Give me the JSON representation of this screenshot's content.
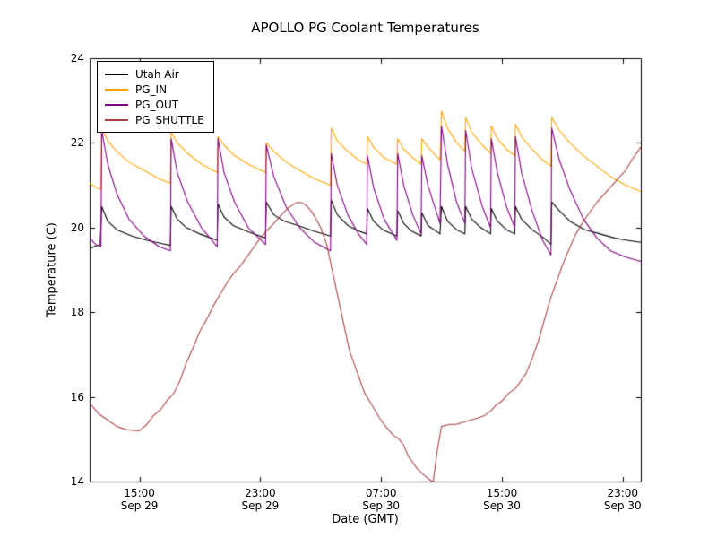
{
  "title": "APOLLO PG Coolant Temperatures",
  "chart_data": {
    "type": "line",
    "title": "APOLLO PG Coolant Temperatures",
    "xlabel": "Date (GMT)",
    "ylabel": "Temperature (C)",
    "x_unit": "hours since Sep 29 00:00 GMT",
    "xlim": [
      11.7,
      48.2
    ],
    "ylim": [
      14,
      24
    ],
    "grid": false,
    "legend_position": "upper left",
    "frame_color": "#000000",
    "xticks": [
      {
        "pos": 15,
        "lines": [
          "15:00",
          "Sep 29"
        ]
      },
      {
        "pos": 23,
        "lines": [
          "23:00",
          "Sep 29"
        ]
      },
      {
        "pos": 31,
        "lines": [
          "07:00",
          "Sep 30"
        ]
      },
      {
        "pos": 39,
        "lines": [
          "15:00",
          "Sep 30"
        ]
      },
      {
        "pos": 47,
        "lines": [
          "23:00",
          "Sep 30"
        ]
      }
    ],
    "yticks": [
      {
        "pos": 14,
        "label": "14"
      },
      {
        "pos": 16,
        "label": "16"
      },
      {
        "pos": 18,
        "label": "18"
      },
      {
        "pos": 20,
        "label": "20"
      },
      {
        "pos": 22,
        "label": "22"
      },
      {
        "pos": 24,
        "label": "24"
      }
    ],
    "series": [
      {
        "name": "Utah Air",
        "color": "#000000",
        "points": [
          [
            11.7,
            19.5
          ],
          [
            12.0,
            19.55
          ],
          [
            12.4,
            19.6
          ],
          [
            12.5,
            20.5
          ],
          [
            12.9,
            20.15
          ],
          [
            13.5,
            19.95
          ],
          [
            14.5,
            19.8
          ],
          [
            15.5,
            19.7
          ],
          [
            16.5,
            19.62
          ],
          [
            17.05,
            19.58
          ],
          [
            17.1,
            20.5
          ],
          [
            17.5,
            20.2
          ],
          [
            18.1,
            20.0
          ],
          [
            19.0,
            19.85
          ],
          [
            20.15,
            19.7
          ],
          [
            20.2,
            20.55
          ],
          [
            20.6,
            20.25
          ],
          [
            21.2,
            20.05
          ],
          [
            22.2,
            19.9
          ],
          [
            23.35,
            19.75
          ],
          [
            23.4,
            20.6
          ],
          [
            23.9,
            20.3
          ],
          [
            24.6,
            20.15
          ],
          [
            25.5,
            20.05
          ],
          [
            26.5,
            19.92
          ],
          [
            27.65,
            19.8
          ],
          [
            27.7,
            20.65
          ],
          [
            28.1,
            20.3
          ],
          [
            28.8,
            20.05
          ],
          [
            29.5,
            19.92
          ],
          [
            30.05,
            19.85
          ],
          [
            30.1,
            20.45
          ],
          [
            30.5,
            20.15
          ],
          [
            31.1,
            19.95
          ],
          [
            32.05,
            19.8
          ],
          [
            32.1,
            20.4
          ],
          [
            32.5,
            20.1
          ],
          [
            33.0,
            19.92
          ],
          [
            33.65,
            19.8
          ],
          [
            33.7,
            20.35
          ],
          [
            34.1,
            20.05
          ],
          [
            34.9,
            19.85
          ],
          [
            35.0,
            20.5
          ],
          [
            35.4,
            20.15
          ],
          [
            36.0,
            19.95
          ],
          [
            36.55,
            19.85
          ],
          [
            36.6,
            20.5
          ],
          [
            37.0,
            20.2
          ],
          [
            37.6,
            20.0
          ],
          [
            38.25,
            19.85
          ],
          [
            38.3,
            20.45
          ],
          [
            38.7,
            20.15
          ],
          [
            39.3,
            19.95
          ],
          [
            39.85,
            19.85
          ],
          [
            39.9,
            20.5
          ],
          [
            40.3,
            20.2
          ],
          [
            41.0,
            19.95
          ],
          [
            41.8,
            19.75
          ],
          [
            42.25,
            19.6
          ],
          [
            42.3,
            20.6
          ],
          [
            42.8,
            20.4
          ],
          [
            43.5,
            20.15
          ],
          [
            44.5,
            19.95
          ],
          [
            45.5,
            19.85
          ],
          [
            46.5,
            19.75
          ],
          [
            47.3,
            19.7
          ],
          [
            48.2,
            19.65
          ]
        ]
      },
      {
        "name": "PG_IN",
        "color": "#ffa500",
        "points": [
          [
            11.7,
            21.05
          ],
          [
            12.1,
            20.95
          ],
          [
            12.45,
            20.9
          ],
          [
            12.5,
            22.35
          ],
          [
            12.9,
            22.05
          ],
          [
            13.5,
            21.8
          ],
          [
            14.3,
            21.55
          ],
          [
            15.3,
            21.35
          ],
          [
            16.3,
            21.15
          ],
          [
            17.05,
            21.05
          ],
          [
            17.1,
            22.25
          ],
          [
            17.5,
            22.0
          ],
          [
            18.2,
            21.75
          ],
          [
            19.1,
            21.5
          ],
          [
            20.15,
            21.3
          ],
          [
            20.2,
            22.15
          ],
          [
            20.6,
            21.95
          ],
          [
            21.3,
            21.7
          ],
          [
            22.2,
            21.5
          ],
          [
            23.35,
            21.3
          ],
          [
            23.4,
            22.0
          ],
          [
            23.9,
            21.8
          ],
          [
            24.7,
            21.55
          ],
          [
            25.6,
            21.35
          ],
          [
            26.6,
            21.15
          ],
          [
            27.65,
            21.0
          ],
          [
            27.7,
            22.35
          ],
          [
            28.1,
            22.05
          ],
          [
            28.8,
            21.8
          ],
          [
            29.5,
            21.6
          ],
          [
            30.05,
            21.5
          ],
          [
            30.1,
            22.15
          ],
          [
            30.5,
            21.9
          ],
          [
            31.2,
            21.65
          ],
          [
            32.05,
            21.5
          ],
          [
            32.1,
            22.1
          ],
          [
            32.5,
            21.85
          ],
          [
            33.1,
            21.65
          ],
          [
            33.65,
            21.5
          ],
          [
            33.7,
            22.1
          ],
          [
            34.1,
            21.9
          ],
          [
            34.9,
            21.6
          ],
          [
            35.0,
            22.75
          ],
          [
            35.4,
            22.35
          ],
          [
            36.0,
            22.0
          ],
          [
            36.55,
            21.8
          ],
          [
            36.6,
            22.6
          ],
          [
            37.0,
            22.25
          ],
          [
            37.7,
            21.95
          ],
          [
            38.25,
            21.75
          ],
          [
            38.3,
            22.4
          ],
          [
            38.7,
            22.1
          ],
          [
            39.3,
            21.85
          ],
          [
            39.85,
            21.7
          ],
          [
            39.9,
            22.45
          ],
          [
            40.3,
            22.15
          ],
          [
            41.0,
            21.85
          ],
          [
            41.7,
            21.6
          ],
          [
            42.25,
            21.45
          ],
          [
            42.3,
            22.6
          ],
          [
            42.8,
            22.3
          ],
          [
            43.5,
            22.0
          ],
          [
            44.4,
            21.7
          ],
          [
            45.3,
            21.45
          ],
          [
            46.2,
            21.2
          ],
          [
            47.2,
            21.0
          ],
          [
            48.2,
            20.85
          ]
        ]
      },
      {
        "name": "PG_OUT",
        "color": "#800080",
        "points": [
          [
            11.7,
            19.75
          ],
          [
            12.1,
            19.6
          ],
          [
            12.45,
            19.55
          ],
          [
            12.5,
            22.3
          ],
          [
            12.9,
            21.5
          ],
          [
            13.5,
            20.8
          ],
          [
            14.3,
            20.2
          ],
          [
            15.3,
            19.8
          ],
          [
            16.3,
            19.55
          ],
          [
            17.05,
            19.45
          ],
          [
            17.1,
            22.1
          ],
          [
            17.5,
            21.3
          ],
          [
            18.2,
            20.6
          ],
          [
            19.1,
            20.0
          ],
          [
            20.15,
            19.55
          ],
          [
            20.2,
            22.1
          ],
          [
            20.6,
            21.3
          ],
          [
            21.3,
            20.6
          ],
          [
            22.2,
            20.0
          ],
          [
            23.35,
            19.6
          ],
          [
            23.4,
            21.95
          ],
          [
            23.9,
            21.2
          ],
          [
            24.7,
            20.5
          ],
          [
            25.6,
            20.0
          ],
          [
            26.6,
            19.65
          ],
          [
            27.65,
            19.45
          ],
          [
            27.7,
            21.75
          ],
          [
            28.1,
            21.0
          ],
          [
            28.8,
            20.3
          ],
          [
            29.5,
            19.85
          ],
          [
            30.05,
            19.6
          ],
          [
            30.1,
            21.7
          ],
          [
            30.5,
            20.95
          ],
          [
            31.2,
            20.2
          ],
          [
            32.05,
            19.7
          ],
          [
            32.1,
            21.75
          ],
          [
            32.5,
            21.0
          ],
          [
            33.1,
            20.3
          ],
          [
            33.65,
            19.85
          ],
          [
            33.7,
            21.7
          ],
          [
            34.1,
            21.0
          ],
          [
            34.9,
            20.1
          ],
          [
            35.0,
            22.4
          ],
          [
            35.4,
            21.5
          ],
          [
            36.0,
            20.6
          ],
          [
            36.55,
            20.1
          ],
          [
            36.6,
            22.3
          ],
          [
            37.0,
            21.4
          ],
          [
            37.7,
            20.5
          ],
          [
            38.25,
            20.0
          ],
          [
            38.3,
            22.1
          ],
          [
            38.7,
            21.3
          ],
          [
            39.3,
            20.5
          ],
          [
            39.85,
            20.0
          ],
          [
            39.9,
            22.15
          ],
          [
            40.3,
            21.3
          ],
          [
            41.0,
            20.4
          ],
          [
            41.7,
            19.7
          ],
          [
            42.25,
            19.35
          ],
          [
            42.3,
            22.35
          ],
          [
            42.8,
            21.6
          ],
          [
            43.5,
            20.9
          ],
          [
            44.4,
            20.2
          ],
          [
            45.3,
            19.75
          ],
          [
            46.2,
            19.45
          ],
          [
            47.2,
            19.3
          ],
          [
            48.2,
            19.2
          ]
        ]
      },
      {
        "name": "PG_SHUTTLE",
        "color": "#aa4444",
        "points": [
          [
            11.7,
            15.85
          ],
          [
            12.3,
            15.6
          ],
          [
            12.9,
            15.45
          ],
          [
            13.5,
            15.3
          ],
          [
            14.2,
            15.22
          ],
          [
            15.0,
            15.2
          ],
          [
            15.5,
            15.35
          ],
          [
            15.9,
            15.55
          ],
          [
            16.4,
            15.7
          ],
          [
            16.8,
            15.9
          ],
          [
            17.3,
            16.1
          ],
          [
            17.7,
            16.4
          ],
          [
            18.1,
            16.8
          ],
          [
            18.6,
            17.2
          ],
          [
            19.0,
            17.55
          ],
          [
            19.4,
            17.8
          ],
          [
            19.9,
            18.15
          ],
          [
            20.3,
            18.4
          ],
          [
            20.8,
            18.7
          ],
          [
            21.2,
            18.9
          ],
          [
            21.7,
            19.1
          ],
          [
            22.1,
            19.3
          ],
          [
            22.6,
            19.55
          ],
          [
            23.0,
            19.75
          ],
          [
            23.5,
            19.95
          ],
          [
            23.9,
            20.1
          ],
          [
            24.4,
            20.3
          ],
          [
            24.8,
            20.45
          ],
          [
            25.2,
            20.55
          ],
          [
            25.5,
            20.6
          ],
          [
            25.8,
            20.58
          ],
          [
            26.1,
            20.5
          ],
          [
            26.4,
            20.38
          ],
          [
            26.7,
            20.2
          ],
          [
            27.0,
            20.0
          ],
          [
            27.4,
            19.6
          ],
          [
            27.7,
            19.1
          ],
          [
            28.0,
            18.6
          ],
          [
            28.3,
            18.1
          ],
          [
            28.6,
            17.6
          ],
          [
            28.9,
            17.1
          ],
          [
            29.2,
            16.8
          ],
          [
            29.5,
            16.5
          ],
          [
            29.9,
            16.1
          ],
          [
            30.4,
            15.8
          ],
          [
            30.9,
            15.5
          ],
          [
            31.3,
            15.3
          ],
          [
            31.8,
            15.1
          ],
          [
            32.2,
            15.0
          ],
          [
            32.5,
            14.85
          ],
          [
            32.8,
            14.6
          ],
          [
            33.1,
            14.45
          ],
          [
            33.4,
            14.3
          ],
          [
            33.7,
            14.2
          ],
          [
            34.0,
            14.1
          ],
          [
            34.3,
            14.02
          ],
          [
            34.45,
            14.0
          ],
          [
            34.6,
            14.4
          ],
          [
            34.75,
            14.8
          ],
          [
            34.9,
            15.1
          ],
          [
            35.0,
            15.3
          ],
          [
            35.3,
            15.33
          ],
          [
            35.6,
            15.35
          ],
          [
            36.0,
            15.35
          ],
          [
            36.4,
            15.4
          ],
          [
            36.9,
            15.45
          ],
          [
            37.4,
            15.5
          ],
          [
            37.8,
            15.55
          ],
          [
            38.2,
            15.65
          ],
          [
            38.6,
            15.8
          ],
          [
            39.0,
            15.9
          ],
          [
            39.5,
            16.1
          ],
          [
            39.9,
            16.2
          ],
          [
            40.3,
            16.4
          ],
          [
            40.6,
            16.55
          ],
          [
            41.0,
            16.9
          ],
          [
            41.4,
            17.3
          ],
          [
            41.8,
            17.8
          ],
          [
            42.2,
            18.3
          ],
          [
            42.6,
            18.7
          ],
          [
            43.0,
            19.1
          ],
          [
            43.4,
            19.45
          ],
          [
            43.9,
            19.85
          ],
          [
            44.4,
            20.15
          ],
          [
            44.8,
            20.35
          ],
          [
            45.3,
            20.6
          ],
          [
            45.8,
            20.8
          ],
          [
            46.3,
            21.0
          ],
          [
            46.8,
            21.2
          ],
          [
            47.2,
            21.35
          ],
          [
            47.6,
            21.6
          ],
          [
            48.0,
            21.8
          ],
          [
            48.2,
            21.9
          ]
        ]
      }
    ]
  }
}
